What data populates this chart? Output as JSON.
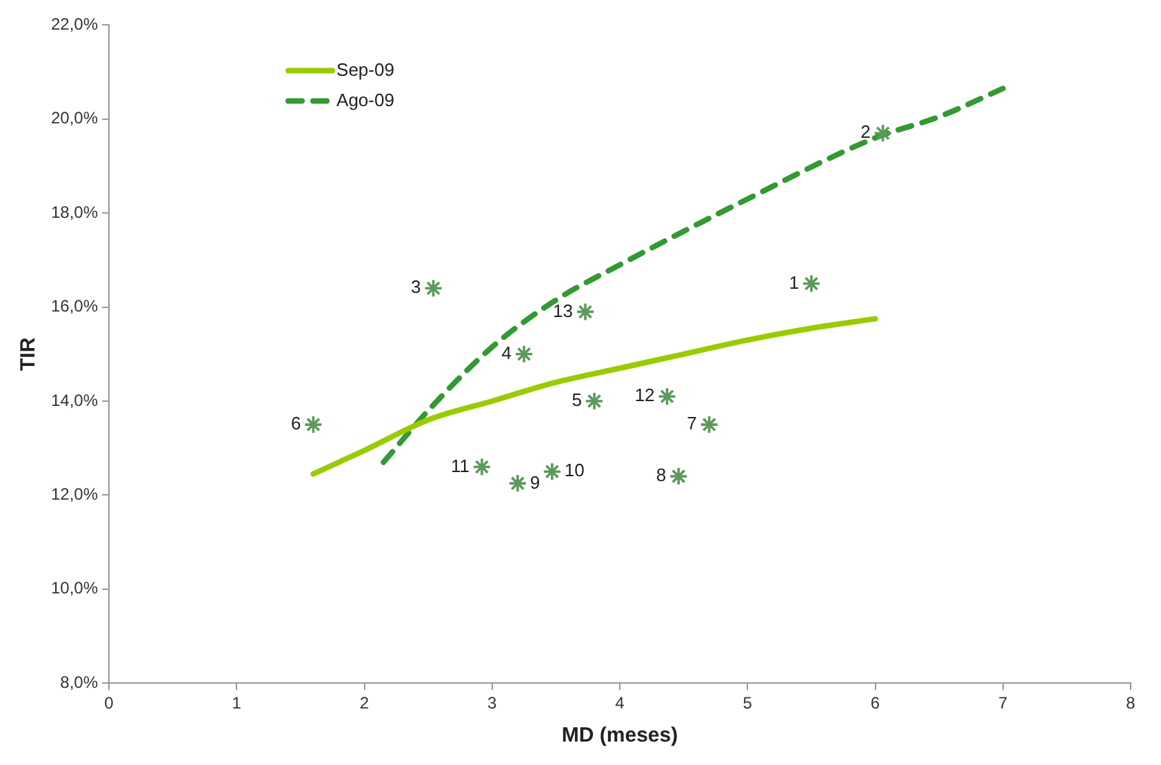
{
  "chart_data": {
    "type": "scatter",
    "xlabel": "MD (meses)",
    "ylabel": "TIR",
    "xlim": [
      0,
      8
    ],
    "xticks": [
      0,
      1,
      2,
      3,
      4,
      5,
      6,
      7,
      8
    ],
    "ylim": [
      8,
      22
    ],
    "yticks": [
      {
        "value": 8,
        "label": "8,0%"
      },
      {
        "value": 10,
        "label": "10,0%"
      },
      {
        "value": 12,
        "label": "12,0%"
      },
      {
        "value": 14,
        "label": "14,0%"
      },
      {
        "value": 16,
        "label": "16,0%"
      },
      {
        "value": 18,
        "label": "18,0%"
      },
      {
        "value": 20,
        "label": "20,0%"
      },
      {
        "value": 22,
        "label": "22,0%"
      }
    ],
    "grid": false,
    "legend": "top left",
    "series": [
      {
        "name": "Sep-09",
        "type": "line",
        "color": "#99cc00",
        "line_style": "solid",
        "marker": "none",
        "x": [
          1.6,
          2,
          2.5,
          3,
          3.5,
          4,
          4.5,
          5,
          5.5,
          6
        ],
        "values": [
          12.45,
          12.95,
          13.6,
          14.0,
          14.4,
          14.7,
          15.0,
          15.3,
          15.55,
          15.75
        ]
      },
      {
        "name": "Ago-09",
        "type": "line",
        "color": "#339933",
        "line_style": "dashed",
        "marker": "none",
        "x": [
          2.15,
          2.5,
          3,
          3.5,
          4,
          5,
          6,
          6.5,
          7
        ],
        "values": [
          12.7,
          13.8,
          15.15,
          16.15,
          16.9,
          18.3,
          19.6,
          20.05,
          20.65
        ]
      },
      {
        "type": "scatter",
        "color": "#5b9a5b",
        "marker": "cross",
        "x": [
          5.5,
          6.06,
          2.54,
          3.25,
          3.8,
          1.6,
          4.7,
          4.46,
          3.2,
          3.47,
          2.92,
          4.37,
          3.73
        ],
        "values": [
          16.5,
          19.7,
          16.4,
          15.0,
          14.0,
          13.5,
          13.5,
          12.4,
          12.25,
          12.5,
          12.6,
          14.1,
          15.9
        ]
      }
    ],
    "annotations": [
      {
        "text": "1",
        "x": 5.5,
        "y": 16.5
      },
      {
        "text": "2",
        "x": 6.06,
        "y": 19.7
      },
      {
        "text": "3",
        "x": 2.54,
        "y": 16.4
      },
      {
        "text": "4",
        "x": 3.25,
        "y": 15.0
      },
      {
        "text": "5",
        "x": 3.8,
        "y": 14.0
      },
      {
        "text": "6",
        "x": 1.6,
        "y": 13.5
      },
      {
        "text": "7",
        "x": 4.7,
        "y": 13.5
      },
      {
        "text": "8",
        "x": 4.46,
        "y": 12.4
      },
      {
        "text": "9",
        "x": 3.2,
        "y": 12.25
      },
      {
        "text": "10",
        "x": 3.47,
        "y": 12.5
      },
      {
        "text": "11",
        "x": 2.92,
        "y": 12.6
      },
      {
        "text": "12",
        "x": 4.37,
        "y": 14.1
      },
      {
        "text": "13",
        "x": 3.73,
        "y": 15.9
      }
    ]
  }
}
